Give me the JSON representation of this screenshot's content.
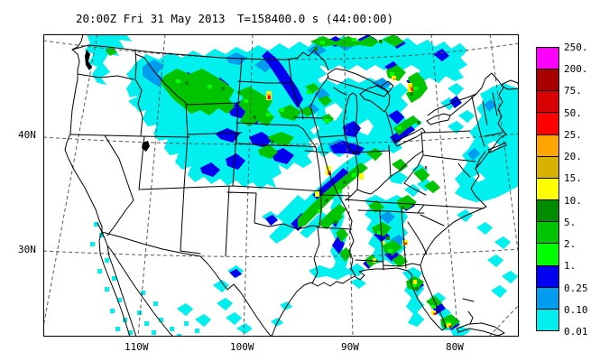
{
  "title": {
    "datetime": "20:00Z Fri 31 May 2013",
    "timer": "T=158400.0 s (44:00:00)"
  },
  "axes": {
    "y": [
      "40N",
      "30N"
    ],
    "x": [
      "110W",
      "100W",
      "90W",
      "80W"
    ]
  },
  "legend": {
    "labels": [
      "250.",
      "200.",
      "75.",
      "50.",
      "25.",
      "20.",
      "15.",
      "10.",
      "5.",
      "2.",
      "1.",
      "0.25",
      "0.10",
      "0.01"
    ],
    "colors": [
      "#FF00FF",
      "#A80000",
      "#D80000",
      "#FF0000",
      "#FFA500",
      "#D8B200",
      "#FFFF00",
      "#008C00",
      "#00C400",
      "#00FF00",
      "#0000F0",
      "#009CF0",
      "#00F0F0"
    ]
  },
  "chart_data": {
    "type": "heatmap",
    "title": "20:00Z Fri 31 May 2013  T=158400.0 s (44:00:00)",
    "description": "Model precipitation field over the continental United States; shaded contour levels with rainbow color scale, lat/lon graticule dashed, state and coastal boundaries in black.",
    "xlabel_ticks": [
      "110W",
      "100W",
      "90W",
      "80W"
    ],
    "ylabel_ticks": [
      "40N",
      "30N"
    ],
    "levels": [
      0.01,
      0.1,
      0.25,
      1,
      2,
      5,
      10,
      15,
      20,
      25,
      50,
      75,
      200,
      250
    ],
    "level_colors_low_to_high": [
      "#00F0F0",
      "#009CF0",
      "#0000F0",
      "#00FF00",
      "#00C400",
      "#008C00",
      "#FFFF00",
      "#D8B200",
      "#FFA500",
      "#FF0000",
      "#D80000",
      "#A80000",
      "#FF00FF"
    ],
    "precip_regions": [
      "Broad band with embedded heavy cores (1-10 range, spots 10-50) arcing from the Pacific Northwest across Montana, Wyoming, the Dakotas and Nebraska",
      "Band along the US-Canada border into Ontario and the upper Great Lakes with convective cores near Lake Superior and Lake Huron",
      "SW-NE band from Arkansas/Missouri across Illinois, Indiana and Ohio with yellow/orange/red cores",
      "Scattered convective cells over Mississippi, Alabama, Georgia and Tennessee",
      "Strong cells over the Florida peninsula with red cores near the southern tip",
      "Light (0.01-0.10) stratiform shield offshore of the Northeast US Atlantic coast",
      "Isolated light cells over northern Mexico, Baja California and west Texas"
    ]
  }
}
